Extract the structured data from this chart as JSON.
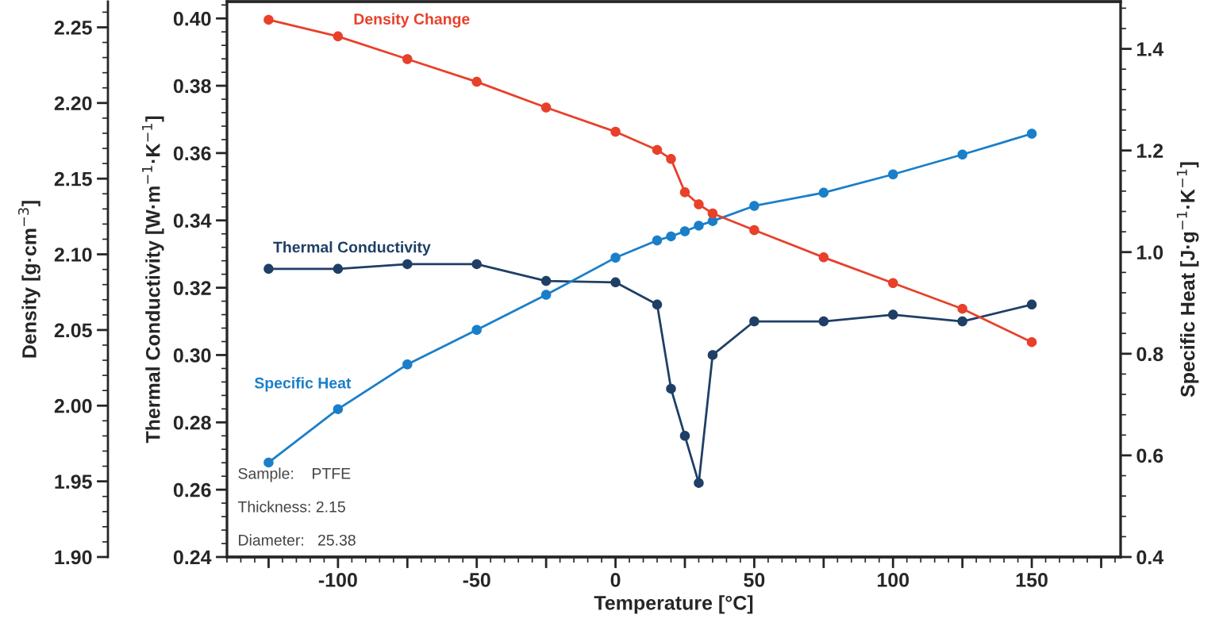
{
  "chart_data": {
    "type": "line",
    "xlabel": "Temperature [°C]",
    "ylabel": "Thermal Conductivity [W·m$^{−1}$·K$^{−1}$]",
    "y2label": "Specific Heat [J·g$^{−1}$·K$^{−1}$]",
    "y3label": "Density [g·cm$^{−3}$]",
    "x": [
      -125,
      -100,
      -75,
      -50,
      -25,
      0,
      15,
      20,
      25,
      30,
      35,
      50,
      75,
      100,
      125,
      150
    ],
    "series": [
      {
        "name": "Density Change",
        "color": "#e8402a",
        "axis": "y3",
        "values": [
          2.255,
          2.244,
          2.229,
          2.214,
          2.197,
          2.181,
          2.169,
          2.163,
          2.141,
          2.133,
          2.127,
          2.116,
          2.098,
          2.081,
          2.064,
          2.042
        ]
      },
      {
        "name": "Thermal Conductivity",
        "color": "#1f3f66",
        "values": [
          0.3256,
          0.3256,
          0.327,
          0.327,
          0.322,
          0.3216,
          0.315,
          0.29,
          0.276,
          0.262,
          0.3,
          0.31,
          0.31,
          0.312,
          0.31,
          0.315
        ]
      },
      {
        "name": "Specific Heat",
        "color": "#1a7fc9",
        "axis": "y2",
        "values": [
          0.586,
          0.691,
          0.779,
          0.847,
          0.916,
          0.989,
          1.023,
          1.031,
          1.041,
          1.052,
          1.061,
          1.091,
          1.117,
          1.153,
          1.192,
          1.233
        ]
      }
    ],
    "xlim": [
      -140,
      182
    ],
    "xticks": [
      {
        "value": -125,
        "label": null
      },
      -100,
      {
        "value": -75,
        "label": null
      },
      -50,
      {
        "value": -25,
        "label": null
      },
      0,
      {
        "value": 25,
        "label": null
      },
      50,
      {
        "value": 75,
        "label": null
      },
      100,
      {
        "value": 125,
        "label": null
      },
      150,
      {
        "value": 175,
        "label": null
      }
    ],
    "ylim": [
      0.24,
      0.405
    ],
    "yticks": [
      {
        "value": 0.24,
        "label": "0.24"
      },
      {
        "value": 0.26,
        "label": "0.26"
      },
      {
        "value": 0.28,
        "label": "0.28"
      },
      {
        "value": 0.3,
        "label": "0.30"
      },
      {
        "value": 0.32,
        "label": "0.32"
      },
      {
        "value": 0.34,
        "label": "0.34"
      },
      {
        "value": 0.36,
        "label": "0.36"
      },
      {
        "value": 0.38,
        "label": "0.38"
      },
      {
        "value": 0.4,
        "label": "0.40"
      }
    ],
    "y2lim": [
      0.4,
      1.493
    ],
    "y2ticks": [
      0.4,
      0.6,
      0.8,
      {
        "value": 1.0,
        "label": "1.0"
      },
      1.2,
      1.4
    ],
    "y3lim": [
      1.9,
      2.267
    ],
    "y3ticks": [
      {
        "value": 1.9,
        "label": "1.90"
      },
      1.95,
      {
        "value": 2.0,
        "label": "2.00"
      },
      2.05,
      {
        "value": 2.1,
        "label": "2.10"
      },
      2.15,
      {
        "value": 2.2,
        "label": "2.20"
      },
      2.25
    ],
    "annotations": [
      "Sample:    PTFE",
      "Thickness: 2.15",
      "Diameter:   25.38"
    ],
    "marker": "circle",
    "line_style": "solid",
    "grid": false,
    "legend": false
  }
}
